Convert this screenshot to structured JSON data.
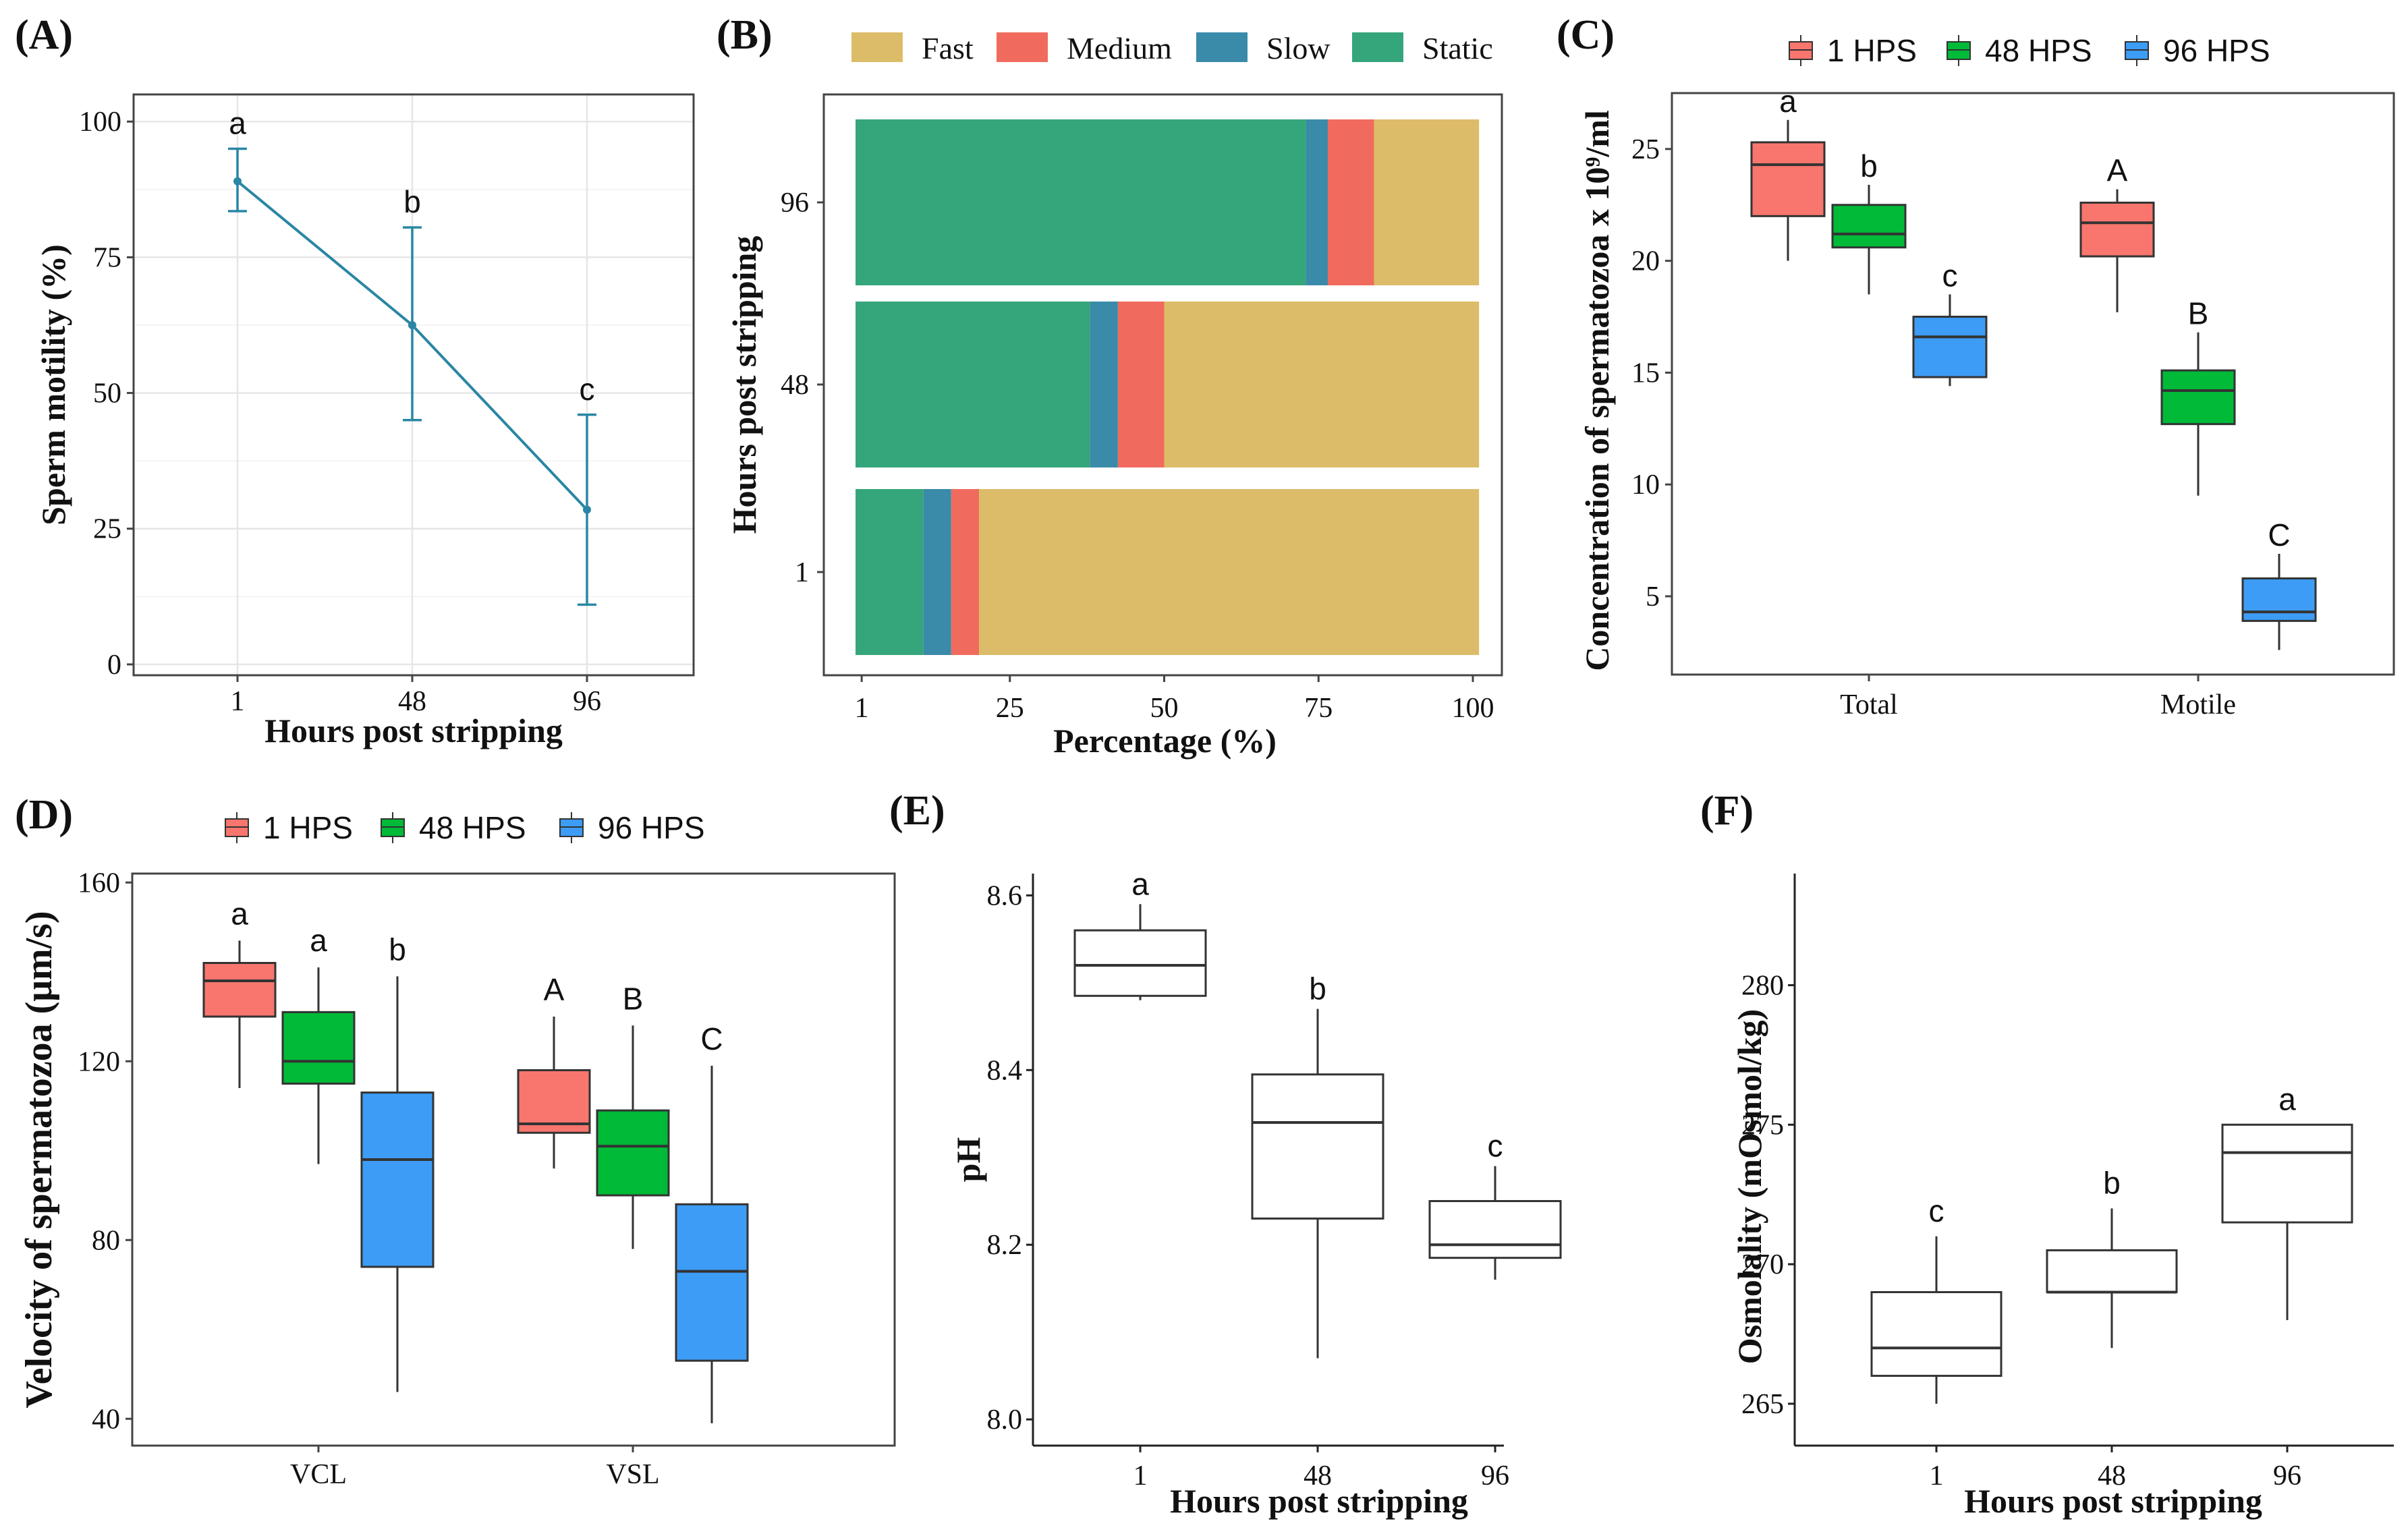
{
  "chart_data": [
    {
      "id": "A",
      "type": "line",
      "panel_label": "(A)",
      "title": "",
      "xlabel": "Hours post stripping",
      "ylabel": "Sperm motility (%)",
      "categories": [
        "1",
        "48",
        "96"
      ],
      "values": [
        89,
        62.5,
        28.5
      ],
      "error_low": [
        83.5,
        45,
        11
      ],
      "error_high": [
        95,
        80.5,
        46
      ],
      "labels": [
        "a",
        "b",
        "c"
      ],
      "ylim": [
        -2,
        105
      ],
      "yticks": [
        0,
        25,
        50,
        75,
        100
      ],
      "color": "#2a86a4",
      "grid": true
    },
    {
      "id": "B",
      "type": "bar",
      "orientation": "horizontal-stacked",
      "panel_label": "(B)",
      "xlabel": "Percentage (%)",
      "ylabel": "Hours post stripping",
      "categories": [
        "1",
        "48",
        "96"
      ],
      "series": [
        {
          "name": "Static",
          "color": "#35a57b",
          "values": [
            11,
            38,
            73
          ]
        },
        {
          "name": "Slow",
          "color": "#3a8aaa",
          "values": [
            4.5,
            4.5,
            3.5
          ]
        },
        {
          "name": "Medium",
          "color": "#f06b5d",
          "values": [
            4.5,
            7.5,
            7.5
          ]
        },
        {
          "name": "Fast",
          "color": "#dcbc68",
          "values": [
            81,
            51,
            17
          ]
        }
      ],
      "legend_order": [
        "Fast",
        "Medium",
        "Slow",
        "Static"
      ],
      "xticks": [
        "1",
        "25",
        "50",
        "75",
        "100"
      ],
      "xlim": [
        0,
        100
      ]
    },
    {
      "id": "C",
      "type": "box",
      "panel_label": "(C)",
      "ylabel": "Concentration of spermatozoa x 10⁹/ml",
      "groups": [
        "Total",
        "Motile"
      ],
      "series_names": [
        "1 HPS",
        "48 HPS",
        "96 HPS"
      ],
      "series_colors": [
        "#f8766d",
        "#00ba38",
        "#3d9cf5"
      ],
      "boxes": [
        [
          {
            "min": 20,
            "q1": 22,
            "median": 24.3,
            "q3": 25.3,
            "max": 26.3,
            "label": "a"
          },
          {
            "min": 18.5,
            "q1": 20.6,
            "median": 21.2,
            "q3": 22.5,
            "max": 23.4,
            "label": "b"
          },
          {
            "min": 14.4,
            "q1": 14.8,
            "median": 16.6,
            "q3": 17.5,
            "max": 18.5,
            "label": "c"
          }
        ],
        [
          {
            "min": 17.7,
            "q1": 20.2,
            "median": 21.7,
            "q3": 22.6,
            "max": 23.2,
            "label": "A"
          },
          {
            "min": 9.5,
            "q1": 12.7,
            "median": 14.2,
            "q3": 15.1,
            "max": 16.8,
            "label": "B"
          },
          {
            "min": 2.6,
            "q1": 3.9,
            "median": 4.3,
            "q3": 5.8,
            "max": 6.9,
            "label": "C"
          }
        ]
      ],
      "yticks": [
        5,
        10,
        15,
        20,
        25
      ],
      "ylim": [
        1.5,
        27.5
      ]
    },
    {
      "id": "D",
      "type": "box",
      "panel_label": "(D)",
      "ylabel": "Velocity of spermatozoa (μm/s)",
      "groups": [
        "VCL",
        "VSL"
      ],
      "series_names": [
        "1 HPS",
        "48 HPS",
        "96 HPS"
      ],
      "series_colors": [
        "#f8766d",
        "#00ba38",
        "#3d9cf5"
      ],
      "boxes": [
        [
          {
            "min": 114,
            "q1": 130,
            "median": 138,
            "q3": 142,
            "max": 147,
            "label": "a"
          },
          {
            "min": 97,
            "q1": 115,
            "median": 120,
            "q3": 131,
            "max": 141,
            "label": "a"
          },
          {
            "min": 46,
            "q1": 74,
            "median": 98,
            "q3": 113,
            "max": 139,
            "label": "b"
          }
        ],
        [
          {
            "min": 96,
            "q1": 104,
            "median": 106,
            "q3": 118,
            "max": 130,
            "label": "A"
          },
          {
            "min": 78,
            "q1": 90,
            "median": 101,
            "q3": 109,
            "max": 128,
            "label": "B"
          },
          {
            "min": 39,
            "q1": 53,
            "median": 73,
            "q3": 88,
            "max": 119,
            "label": "C"
          }
        ]
      ],
      "yticks": [
        40,
        80,
        120,
        160
      ],
      "ylim": [
        34,
        162
      ]
    },
    {
      "id": "E",
      "type": "box",
      "panel_label": "(E)",
      "xlabel": "Hours post stripping",
      "ylabel": "pH",
      "categories": [
        "1",
        "48",
        "96"
      ],
      "boxes": [
        {
          "min": 8.48,
          "q1": 8.485,
          "median": 8.52,
          "q3": 8.56,
          "max": 8.59,
          "label": "a"
        },
        {
          "min": 8.07,
          "q1": 8.23,
          "median": 8.34,
          "q3": 8.395,
          "max": 8.47,
          "label": "b"
        },
        {
          "min": 8.16,
          "q1": 8.185,
          "median": 8.2,
          "q3": 8.25,
          "max": 8.29,
          "label": "c"
        }
      ],
      "yticks": [
        "8.0",
        "8.2",
        "8.4",
        "8.6"
      ],
      "ylim": [
        7.97,
        8.625
      ]
    },
    {
      "id": "F",
      "type": "box",
      "panel_label": "(F)",
      "xlabel": "Hours post stripping",
      "ylabel": "Osmolality (mOsmol/kg)",
      "categories": [
        "1",
        "48",
        "96"
      ],
      "boxes": [
        {
          "min": 265,
          "q1": 266,
          "median": 267,
          "q3": 269,
          "max": 271,
          "label": "c"
        },
        {
          "min": 267,
          "q1": 269,
          "median": 269,
          "q3": 270.5,
          "max": 272,
          "label": "b"
        },
        {
          "min": 268,
          "q1": 271.5,
          "median": 274,
          "q3": 275,
          "max": 275,
          "label": "a"
        }
      ],
      "yticks": [
        265,
        270,
        275,
        280
      ],
      "ylim": [
        263.5,
        284
      ]
    }
  ]
}
